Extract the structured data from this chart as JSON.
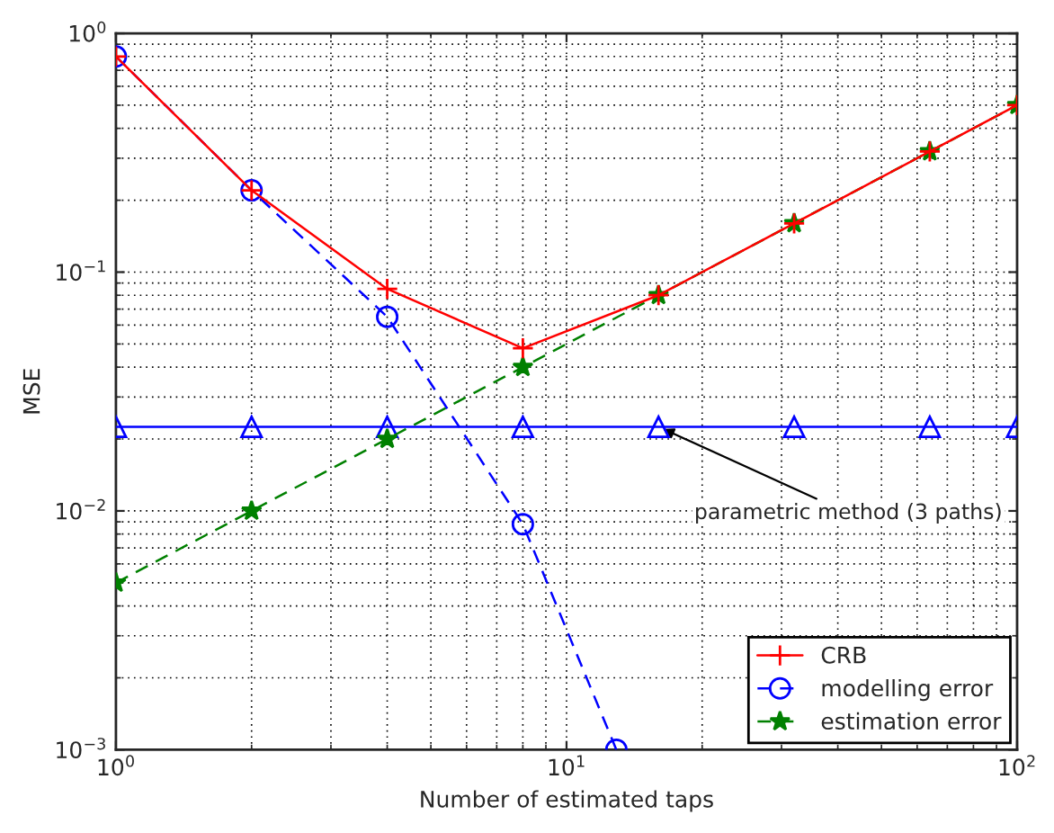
{
  "chart_data": {
    "type": "line",
    "xlabel": "Number of estimated taps",
    "ylabel": "MSE",
    "log": "xy",
    "xlim": [
      1,
      100
    ],
    "ylim": [
      0.001,
      1
    ],
    "xticks": [
      {
        "value": 1,
        "label": "10$^{0}$"
      },
      {
        "value": 10,
        "label": "10$^{1}$"
      },
      {
        "value": 100,
        "label": "10$^{2}$"
      }
    ],
    "yticks": [
      {
        "value": 0.001,
        "label": "10$^{−3}$"
      },
      {
        "value": 0.01,
        "label": "10$^{−2}$"
      },
      {
        "value": 0.1,
        "label": "10$^{−1}$"
      },
      {
        "value": 1,
        "label": "10$^{0}$"
      }
    ],
    "grid": true,
    "legend": "bottom right",
    "series": [
      {
        "name": "CRB",
        "color": "#ff0000",
        "marker": "cross",
        "line_style": "solid",
        "x": [
          1,
          2,
          4,
          8,
          16,
          32,
          64,
          100
        ],
        "values": [
          0.8,
          0.22,
          0.085,
          0.048,
          0.08,
          0.16,
          0.32,
          0.5
        ]
      },
      {
        "name": "modelling error",
        "color": "#0000ff",
        "marker": "circle",
        "line_style": "dashed",
        "x": [
          1,
          2,
          4,
          8,
          12.9
        ],
        "values": [
          0.8,
          0.22,
          0.065,
          0.0088,
          0.001
        ]
      },
      {
        "name": "estimation error",
        "color": "#008000",
        "marker": "star",
        "line_style": "dashed",
        "x": [
          1,
          2,
          4,
          8,
          16,
          32,
          64,
          100
        ],
        "values": [
          0.005,
          0.01,
          0.02,
          0.04,
          0.08,
          0.16,
          0.32,
          0.5
        ]
      },
      {
        "color": "#0000ff",
        "marker": "triangle",
        "line_style": "solid",
        "x": [
          1,
          2,
          4,
          8,
          16,
          32,
          64,
          100
        ],
        "values": [
          0.0225,
          0.0225,
          0.0225,
          0.0225,
          0.0225,
          0.0225,
          0.0225,
          0.0225
        ]
      }
    ],
    "annotations": [
      {
        "text": "parametric method (3 paths)",
        "x": 16,
        "y": 0.0225
      }
    ]
  }
}
